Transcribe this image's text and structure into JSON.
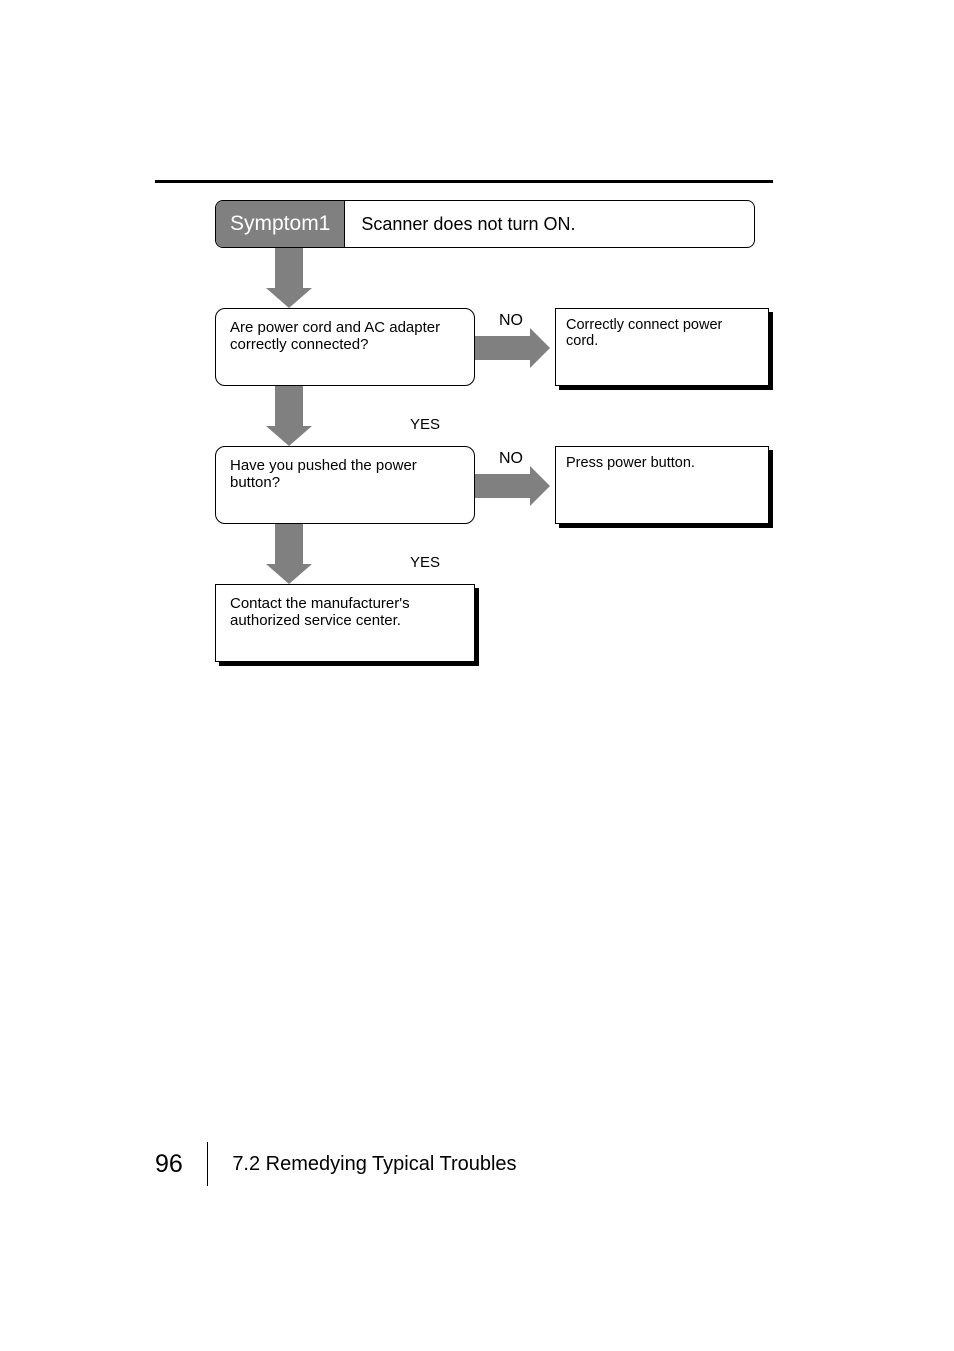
{
  "colors": {
    "rule": "#000000",
    "arrow_fill": "#808080",
    "symptom_label_bg": "#808080",
    "symptom_label_fg": "#ffffff",
    "text": "#000000",
    "box_border": "#000000",
    "box_bg": "#ffffff",
    "shadow": "#000000"
  },
  "flowchart": {
    "type": "flowchart",
    "symptom": {
      "label": "Symptom1",
      "text": "Scanner does not turn ON."
    },
    "steps": [
      {
        "question": "Are power cord and AC adapter correctly connected?",
        "no_label": "NO",
        "no_answer": "Correctly connect power cord.",
        "yes_label": "YES"
      },
      {
        "question": "Have you pushed the power button?",
        "no_label": "NO",
        "no_answer": "Press power button.",
        "yes_label": "YES"
      }
    ],
    "terminal": "Contact the manufacturer's authorized service center."
  },
  "footer": {
    "page_number": "96",
    "section": "7.2  Remedying Typical Troubles"
  }
}
